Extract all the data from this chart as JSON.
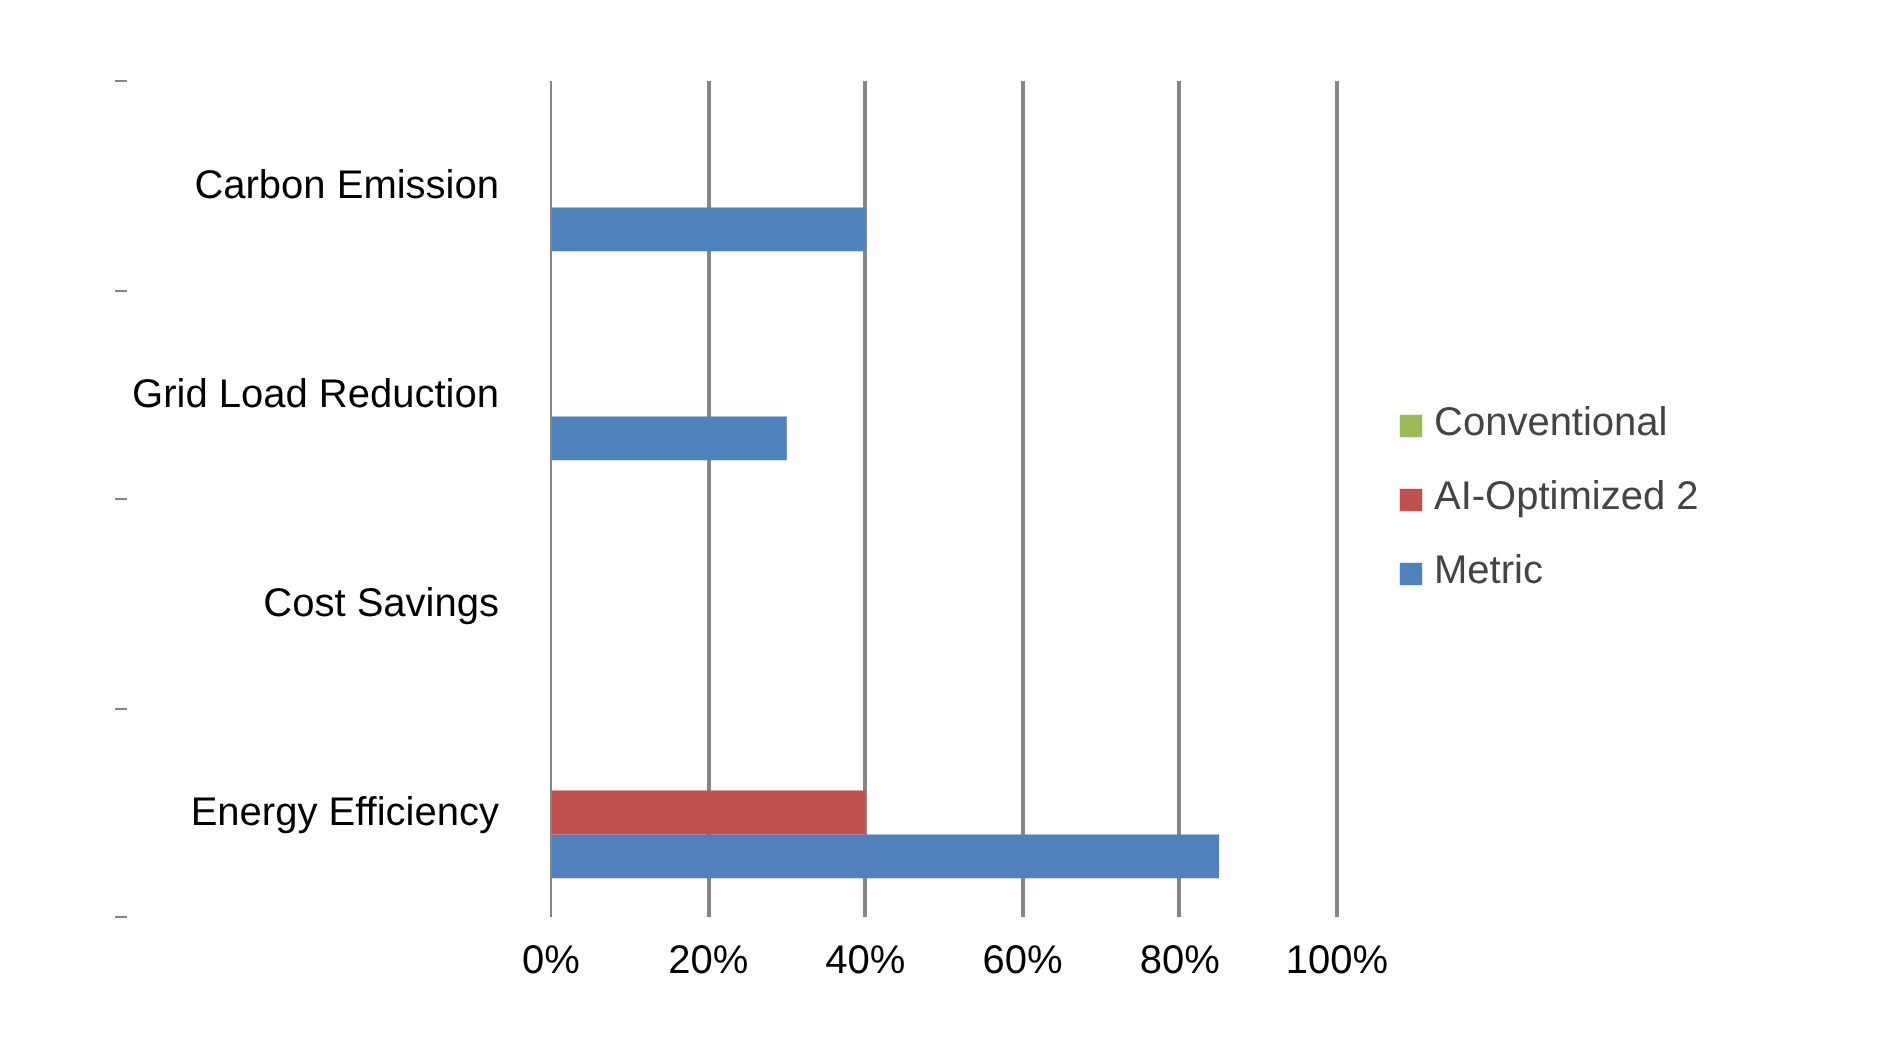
{
  "chart_data": {
    "type": "bar",
    "orientation": "horizontal",
    "categories": [
      "Carbon Emission",
      "Grid Load Reduction",
      "Cost Savings",
      "Energy Efficiency"
    ],
    "series": [
      {
        "name": "Metric",
        "color": "#4f81bd",
        "values": [
          40,
          30,
          null,
          85
        ]
      },
      {
        "name": "AI-Optimized 2",
        "color": "#c0504d",
        "values": [
          null,
          null,
          null,
          40
        ]
      },
      {
        "name": "Conventional",
        "color": "#9bbb59",
        "values": [
          null,
          null,
          null,
          null
        ]
      }
    ],
    "xlim": [
      0,
      100
    ],
    "xticks": [
      {
        "value": 0,
        "label": "0%"
      },
      {
        "value": 20,
        "label": "20%"
      },
      {
        "value": 40,
        "label": "40%"
      },
      {
        "value": 60,
        "label": "60%"
      },
      {
        "value": 80,
        "label": "80%"
      },
      {
        "value": 100,
        "label": "100%"
      }
    ],
    "grid": "x",
    "legend": "right"
  }
}
